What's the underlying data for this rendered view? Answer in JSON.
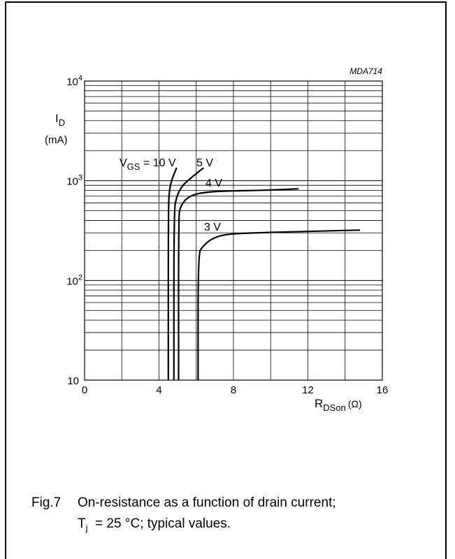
{
  "chart_data": {
    "type": "line",
    "figure_code": "MDA714",
    "x_axis": {
      "label_main": "R",
      "label_sub": "DSon",
      "label_unit": "(Ω)",
      "range": [
        0,
        16
      ],
      "ticks": [
        0,
        4,
        8,
        12,
        16
      ],
      "grid_step": 2
    },
    "y_axis": {
      "label_main": "I",
      "label_sub": "D",
      "label_unit": "(mA)",
      "scale": "log",
      "range": [
        10,
        10000
      ],
      "tick_labels": [
        {
          "value": 10000,
          "base": "10",
          "exp": "4"
        },
        {
          "value": 1000,
          "base": "10",
          "exp": "3"
        },
        {
          "value": 100,
          "base": "10",
          "exp": "2"
        },
        {
          "value": 10,
          "base": "10",
          "exp": ""
        }
      ]
    },
    "grid": true,
    "series": [
      {
        "name": "10 V",
        "points": [
          [
            4.5,
            10
          ],
          [
            4.5,
            500
          ],
          [
            4.55,
            800
          ],
          [
            4.7,
            1050
          ],
          [
            4.95,
            1350
          ]
        ]
      },
      {
        "name": "5 V",
        "points": [
          [
            4.8,
            10
          ],
          [
            4.8,
            500
          ],
          [
            4.95,
            700
          ],
          [
            5.25,
            900
          ],
          [
            5.8,
            1100
          ],
          [
            6.4,
            1350
          ]
        ]
      },
      {
        "name": "4 V",
        "points": [
          [
            5.05,
            10
          ],
          [
            5.05,
            450
          ],
          [
            5.15,
            550
          ],
          [
            5.5,
            680
          ],
          [
            6.2,
            760
          ],
          [
            7.5,
            790
          ],
          [
            9.5,
            800
          ],
          [
            11.5,
            830
          ]
        ]
      },
      {
        "name": "3 V",
        "points": [
          [
            6.1,
            10
          ],
          [
            6.1,
            185
          ],
          [
            6.35,
            220
          ],
          [
            6.8,
            260
          ],
          [
            7.5,
            290
          ],
          [
            9.0,
            300
          ],
          [
            12.0,
            310
          ],
          [
            14.8,
            320
          ]
        ]
      }
    ],
    "annotations": {
      "vgs_main": "V",
      "vgs_sub": "GS",
      "vgs_value": " = 10 V",
      "label_5v": "5 V",
      "label_4v": "4 V",
      "label_3v": "3 V"
    }
  },
  "caption": {
    "figure_number": "Fig.7",
    "line1": "On-resistance as a function of drain current;",
    "line2_main": "T",
    "line2_sub": "j",
    "line2_rest": "  = 25 °C; typical values."
  }
}
